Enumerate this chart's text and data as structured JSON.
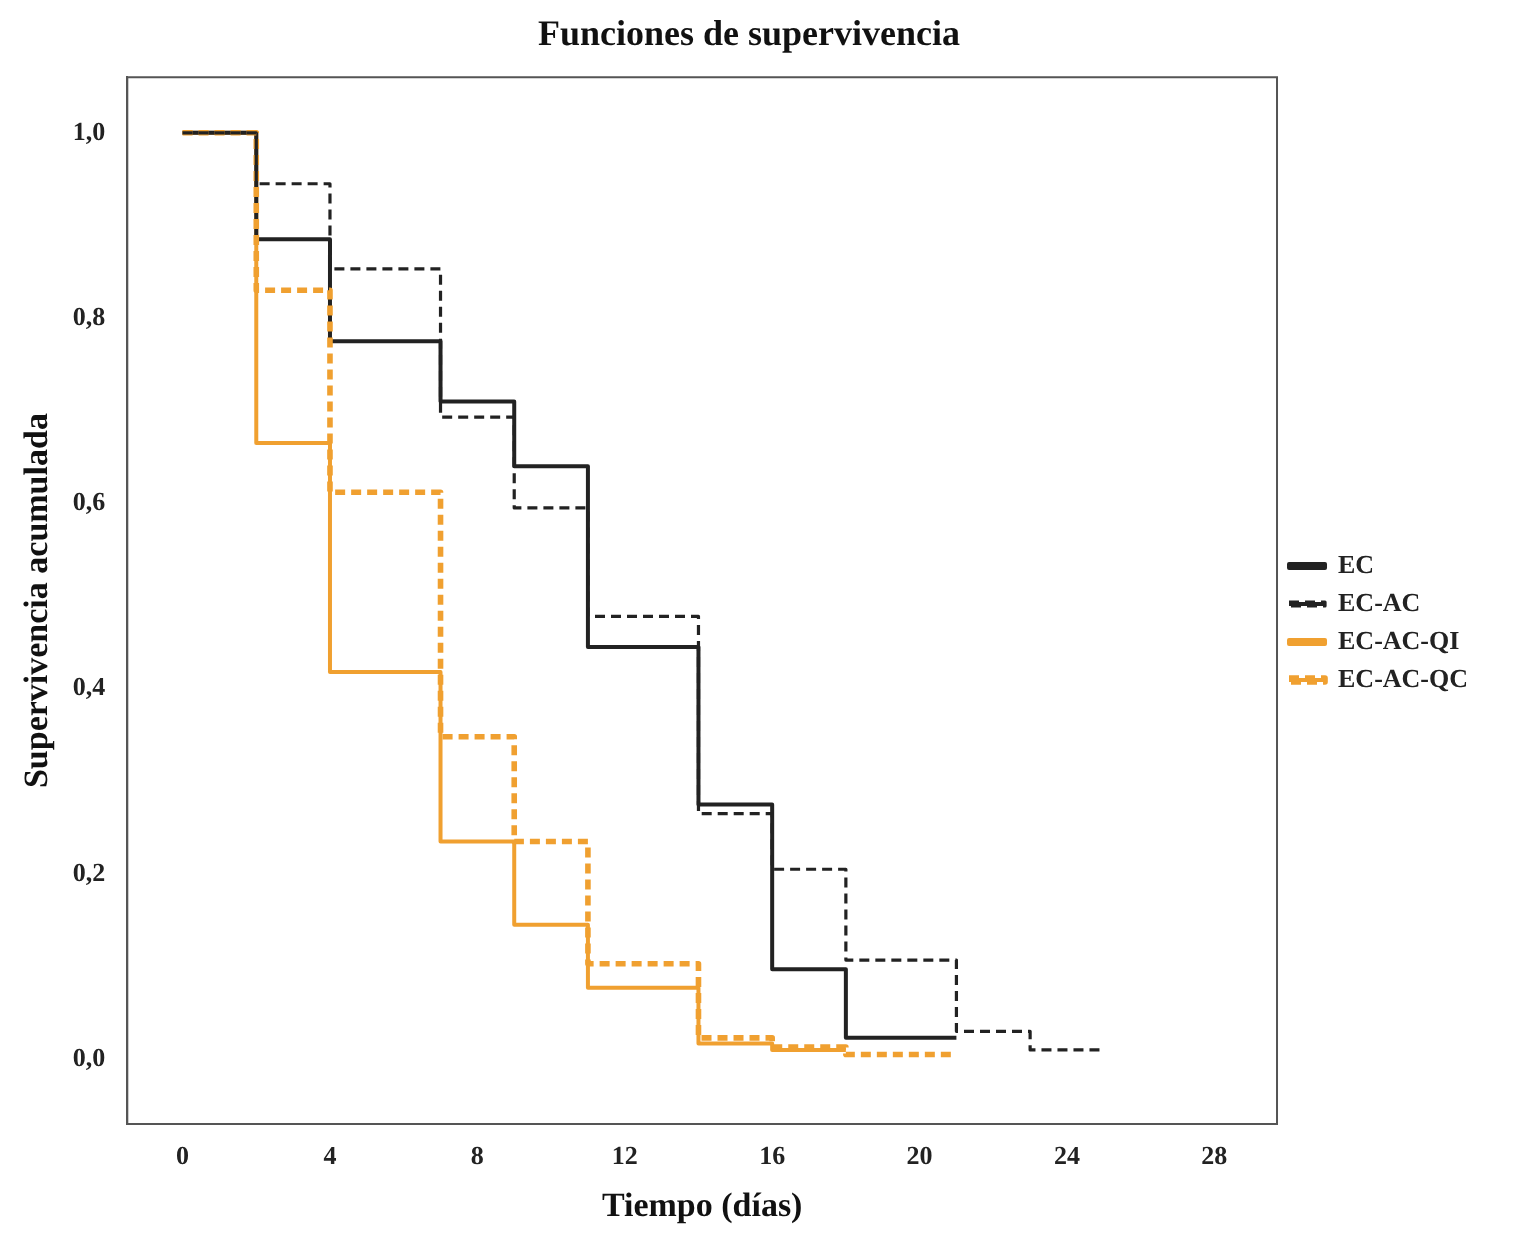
{
  "chart_data": {
    "type": "step",
    "title": "Funciones de supervivencia",
    "xlabel": "Tiempo (días)",
    "ylabel": "Supervivencia acumulada",
    "xlim": [
      -1.5,
      29.7
    ],
    "ylim": [
      -0.07,
      1.06
    ],
    "xticks": [
      0,
      4,
      8,
      12,
      16,
      20,
      24,
      28
    ],
    "yticks": [
      {
        "value": 0,
        "label": "0,0"
      },
      {
        "value": 0.2,
        "label": "0,2"
      },
      {
        "value": 0.4,
        "label": "0,4"
      },
      {
        "value": 0.6,
        "label": "0,6"
      },
      {
        "value": 0.8,
        "label": "0,8"
      },
      {
        "value": 1,
        "label": "1,0"
      }
    ],
    "grid": false,
    "legend": "right",
    "marker": "none",
    "series": [
      {
        "name": "EC",
        "color": "#222222",
        "line_style": "solid",
        "x": [
          0,
          2,
          4,
          7,
          9,
          11,
          14,
          16,
          18,
          21
        ],
        "values": [
          1,
          0.885,
          0.775,
          0.71,
          0.64,
          0.445,
          0.275,
          0.097,
          0.023,
          0.023
        ]
      },
      {
        "name": "EC-AC",
        "color": "#222222",
        "line_style": "dashed",
        "x": [
          0,
          2,
          4,
          7,
          9,
          11,
          14,
          16,
          18,
          21,
          23,
          25
        ],
        "values": [
          1,
          0.945,
          0.853,
          0.693,
          0.595,
          0.478,
          0.265,
          0.205,
          0.107,
          0.03,
          0.01,
          0.01
        ]
      },
      {
        "name": "EC-AC-QI",
        "color": "#f0a030",
        "line_style": "solid",
        "x": [
          0,
          2,
          4,
          7,
          9,
          11,
          14,
          16,
          18
        ],
        "values": [
          1,
          0.665,
          0.418,
          0.235,
          0.145,
          0.077,
          0.017,
          0.01,
          0.01
        ]
      },
      {
        "name": "EC-AC-QC",
        "color": "#f0a030",
        "line_style": "dashed",
        "x": [
          0,
          2,
          4,
          7,
          9,
          11,
          14,
          16,
          18,
          21
        ],
        "values": [
          1,
          0.83,
          0.612,
          0.348,
          0.235,
          0.103,
          0.023,
          0.013,
          0.005,
          0.005
        ]
      }
    ]
  }
}
